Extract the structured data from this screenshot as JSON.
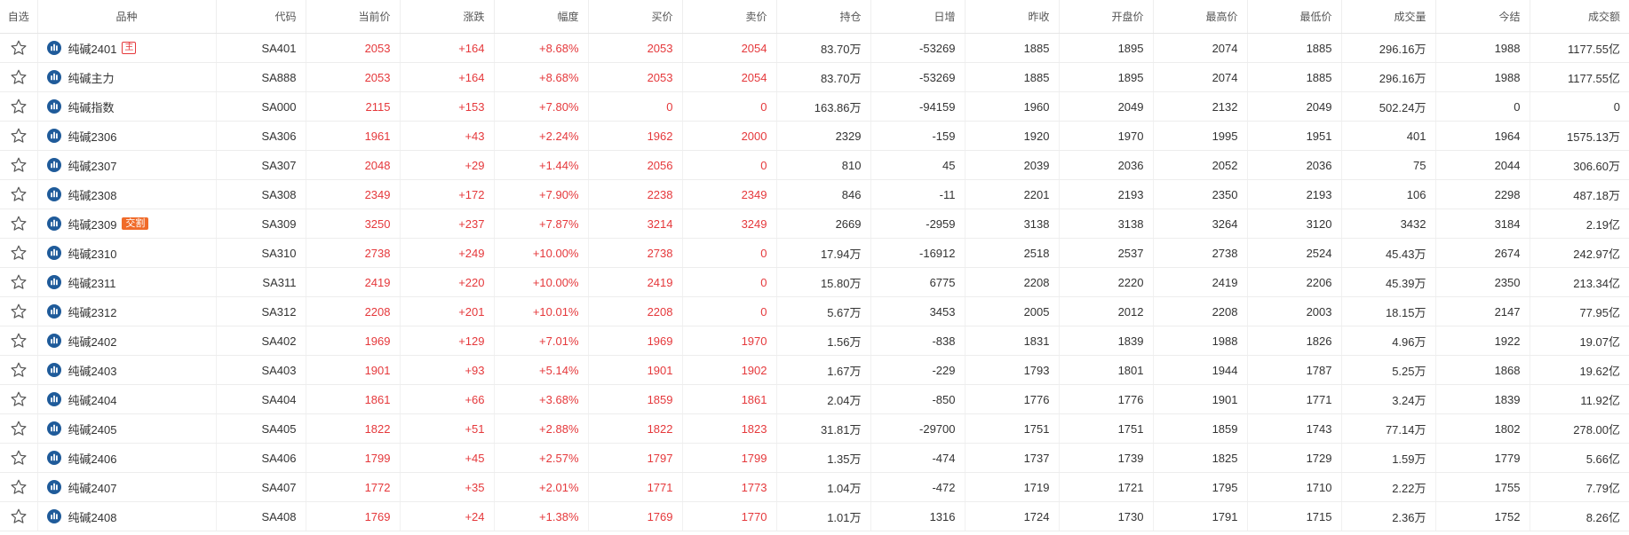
{
  "columns": [
    "自选",
    "品种",
    "代码",
    "当前价",
    "涨跌",
    "幅度",
    "买价",
    "卖价",
    "持仓",
    "日增",
    "昨收",
    "开盘价",
    "最高价",
    "最低价",
    "成交量",
    "今结",
    "成交额"
  ],
  "colors": {
    "up": "#e5383b",
    "logo": "#1f5b9a",
    "delivery_tag": "#f06b2a"
  },
  "rows": [
    {
      "name": "纯碱2401",
      "tag": "主",
      "tag_type": "main",
      "code": "SA401",
      "price": "2053",
      "change": "+164",
      "pct": "+8.68%",
      "bid": "2053",
      "ask": "2054",
      "oi": "83.70万",
      "oi_chg": "-53269",
      "prev_close": "1885",
      "open": "1895",
      "high": "2074",
      "low": "1885",
      "volume": "296.16万",
      "settle": "1988",
      "turnover": "1177.55亿"
    },
    {
      "name": "纯碱主力",
      "tag": "",
      "tag_type": "",
      "code": "SA888",
      "price": "2053",
      "change": "+164",
      "pct": "+8.68%",
      "bid": "2053",
      "ask": "2054",
      "oi": "83.70万",
      "oi_chg": "-53269",
      "prev_close": "1885",
      "open": "1895",
      "high": "2074",
      "low": "1885",
      "volume": "296.16万",
      "settle": "1988",
      "turnover": "1177.55亿"
    },
    {
      "name": "纯碱指数",
      "tag": "",
      "tag_type": "",
      "code": "SA000",
      "price": "2115",
      "change": "+153",
      "pct": "+7.80%",
      "bid": "0",
      "ask": "0",
      "oi": "163.86万",
      "oi_chg": "-94159",
      "prev_close": "1960",
      "open": "2049",
      "high": "2132",
      "low": "2049",
      "volume": "502.24万",
      "settle": "0",
      "turnover": "0"
    },
    {
      "name": "纯碱2306",
      "tag": "",
      "tag_type": "",
      "code": "SA306",
      "price": "1961",
      "change": "+43",
      "pct": "+2.24%",
      "bid": "1962",
      "ask": "2000",
      "oi": "2329",
      "oi_chg": "-159",
      "prev_close": "1920",
      "open": "1970",
      "high": "1995",
      "low": "1951",
      "volume": "401",
      "settle": "1964",
      "turnover": "1575.13万"
    },
    {
      "name": "纯碱2307",
      "tag": "",
      "tag_type": "",
      "code": "SA307",
      "price": "2048",
      "change": "+29",
      "pct": "+1.44%",
      "bid": "2056",
      "ask": "0",
      "oi": "810",
      "oi_chg": "45",
      "prev_close": "2039",
      "open": "2036",
      "high": "2052",
      "low": "2036",
      "volume": "75",
      "settle": "2044",
      "turnover": "306.60万"
    },
    {
      "name": "纯碱2308",
      "tag": "",
      "tag_type": "",
      "code": "SA308",
      "price": "2349",
      "change": "+172",
      "pct": "+7.90%",
      "bid": "2238",
      "ask": "2349",
      "oi": "846",
      "oi_chg": "-11",
      "prev_close": "2201",
      "open": "2193",
      "high": "2350",
      "low": "2193",
      "volume": "106",
      "settle": "2298",
      "turnover": "487.18万"
    },
    {
      "name": "纯碱2309",
      "tag": "交割",
      "tag_type": "delivery",
      "code": "SA309",
      "price": "3250",
      "change": "+237",
      "pct": "+7.87%",
      "bid": "3214",
      "ask": "3249",
      "oi": "2669",
      "oi_chg": "-2959",
      "prev_close": "3138",
      "open": "3138",
      "high": "3264",
      "low": "3120",
      "volume": "3432",
      "settle": "3184",
      "turnover": "2.19亿"
    },
    {
      "name": "纯碱2310",
      "tag": "",
      "tag_type": "",
      "code": "SA310",
      "price": "2738",
      "change": "+249",
      "pct": "+10.00%",
      "bid": "2738",
      "ask": "0",
      "oi": "17.94万",
      "oi_chg": "-16912",
      "prev_close": "2518",
      "open": "2537",
      "high": "2738",
      "low": "2524",
      "volume": "45.43万",
      "settle": "2674",
      "turnover": "242.97亿"
    },
    {
      "name": "纯碱2311",
      "tag": "",
      "tag_type": "",
      "code": "SA311",
      "price": "2419",
      "change": "+220",
      "pct": "+10.00%",
      "bid": "2419",
      "ask": "0",
      "oi": "15.80万",
      "oi_chg": "6775",
      "prev_close": "2208",
      "open": "2220",
      "high": "2419",
      "low": "2206",
      "volume": "45.39万",
      "settle": "2350",
      "turnover": "213.34亿"
    },
    {
      "name": "纯碱2312",
      "tag": "",
      "tag_type": "",
      "code": "SA312",
      "price": "2208",
      "change": "+201",
      "pct": "+10.01%",
      "bid": "2208",
      "ask": "0",
      "oi": "5.67万",
      "oi_chg": "3453",
      "prev_close": "2005",
      "open": "2012",
      "high": "2208",
      "low": "2003",
      "volume": "18.15万",
      "settle": "2147",
      "turnover": "77.95亿"
    },
    {
      "name": "纯碱2402",
      "tag": "",
      "tag_type": "",
      "code": "SA402",
      "price": "1969",
      "change": "+129",
      "pct": "+7.01%",
      "bid": "1969",
      "ask": "1970",
      "oi": "1.56万",
      "oi_chg": "-838",
      "prev_close": "1831",
      "open": "1839",
      "high": "1988",
      "low": "1826",
      "volume": "4.96万",
      "settle": "1922",
      "turnover": "19.07亿"
    },
    {
      "name": "纯碱2403",
      "tag": "",
      "tag_type": "",
      "code": "SA403",
      "price": "1901",
      "change": "+93",
      "pct": "+5.14%",
      "bid": "1901",
      "ask": "1902",
      "oi": "1.67万",
      "oi_chg": "-229",
      "prev_close": "1793",
      "open": "1801",
      "high": "1944",
      "low": "1787",
      "volume": "5.25万",
      "settle": "1868",
      "turnover": "19.62亿"
    },
    {
      "name": "纯碱2404",
      "tag": "",
      "tag_type": "",
      "code": "SA404",
      "price": "1861",
      "change": "+66",
      "pct": "+3.68%",
      "bid": "1859",
      "ask": "1861",
      "oi": "2.04万",
      "oi_chg": "-850",
      "prev_close": "1776",
      "open": "1776",
      "high": "1901",
      "low": "1771",
      "volume": "3.24万",
      "settle": "1839",
      "turnover": "11.92亿"
    },
    {
      "name": "纯碱2405",
      "tag": "",
      "tag_type": "",
      "code": "SA405",
      "price": "1822",
      "change": "+51",
      "pct": "+2.88%",
      "bid": "1822",
      "ask": "1823",
      "oi": "31.81万",
      "oi_chg": "-29700",
      "prev_close": "1751",
      "open": "1751",
      "high": "1859",
      "low": "1743",
      "volume": "77.14万",
      "settle": "1802",
      "turnover": "278.00亿"
    },
    {
      "name": "纯碱2406",
      "tag": "",
      "tag_type": "",
      "code": "SA406",
      "price": "1799",
      "change": "+45",
      "pct": "+2.57%",
      "bid": "1797",
      "ask": "1799",
      "oi": "1.35万",
      "oi_chg": "-474",
      "prev_close": "1737",
      "open": "1739",
      "high": "1825",
      "low": "1729",
      "volume": "1.59万",
      "settle": "1779",
      "turnover": "5.66亿"
    },
    {
      "name": "纯碱2407",
      "tag": "",
      "tag_type": "",
      "code": "SA407",
      "price": "1772",
      "change": "+35",
      "pct": "+2.01%",
      "bid": "1771",
      "ask": "1773",
      "oi": "1.04万",
      "oi_chg": "-472",
      "prev_close": "1719",
      "open": "1721",
      "high": "1795",
      "low": "1710",
      "volume": "2.22万",
      "settle": "1755",
      "turnover": "7.79亿"
    },
    {
      "name": "纯碱2408",
      "tag": "",
      "tag_type": "",
      "code": "SA408",
      "price": "1769",
      "change": "+24",
      "pct": "+1.38%",
      "bid": "1769",
      "ask": "1770",
      "oi": "1.01万",
      "oi_chg": "1316",
      "prev_close": "1724",
      "open": "1730",
      "high": "1791",
      "low": "1715",
      "volume": "2.36万",
      "settle": "1752",
      "turnover": "8.26亿"
    }
  ]
}
